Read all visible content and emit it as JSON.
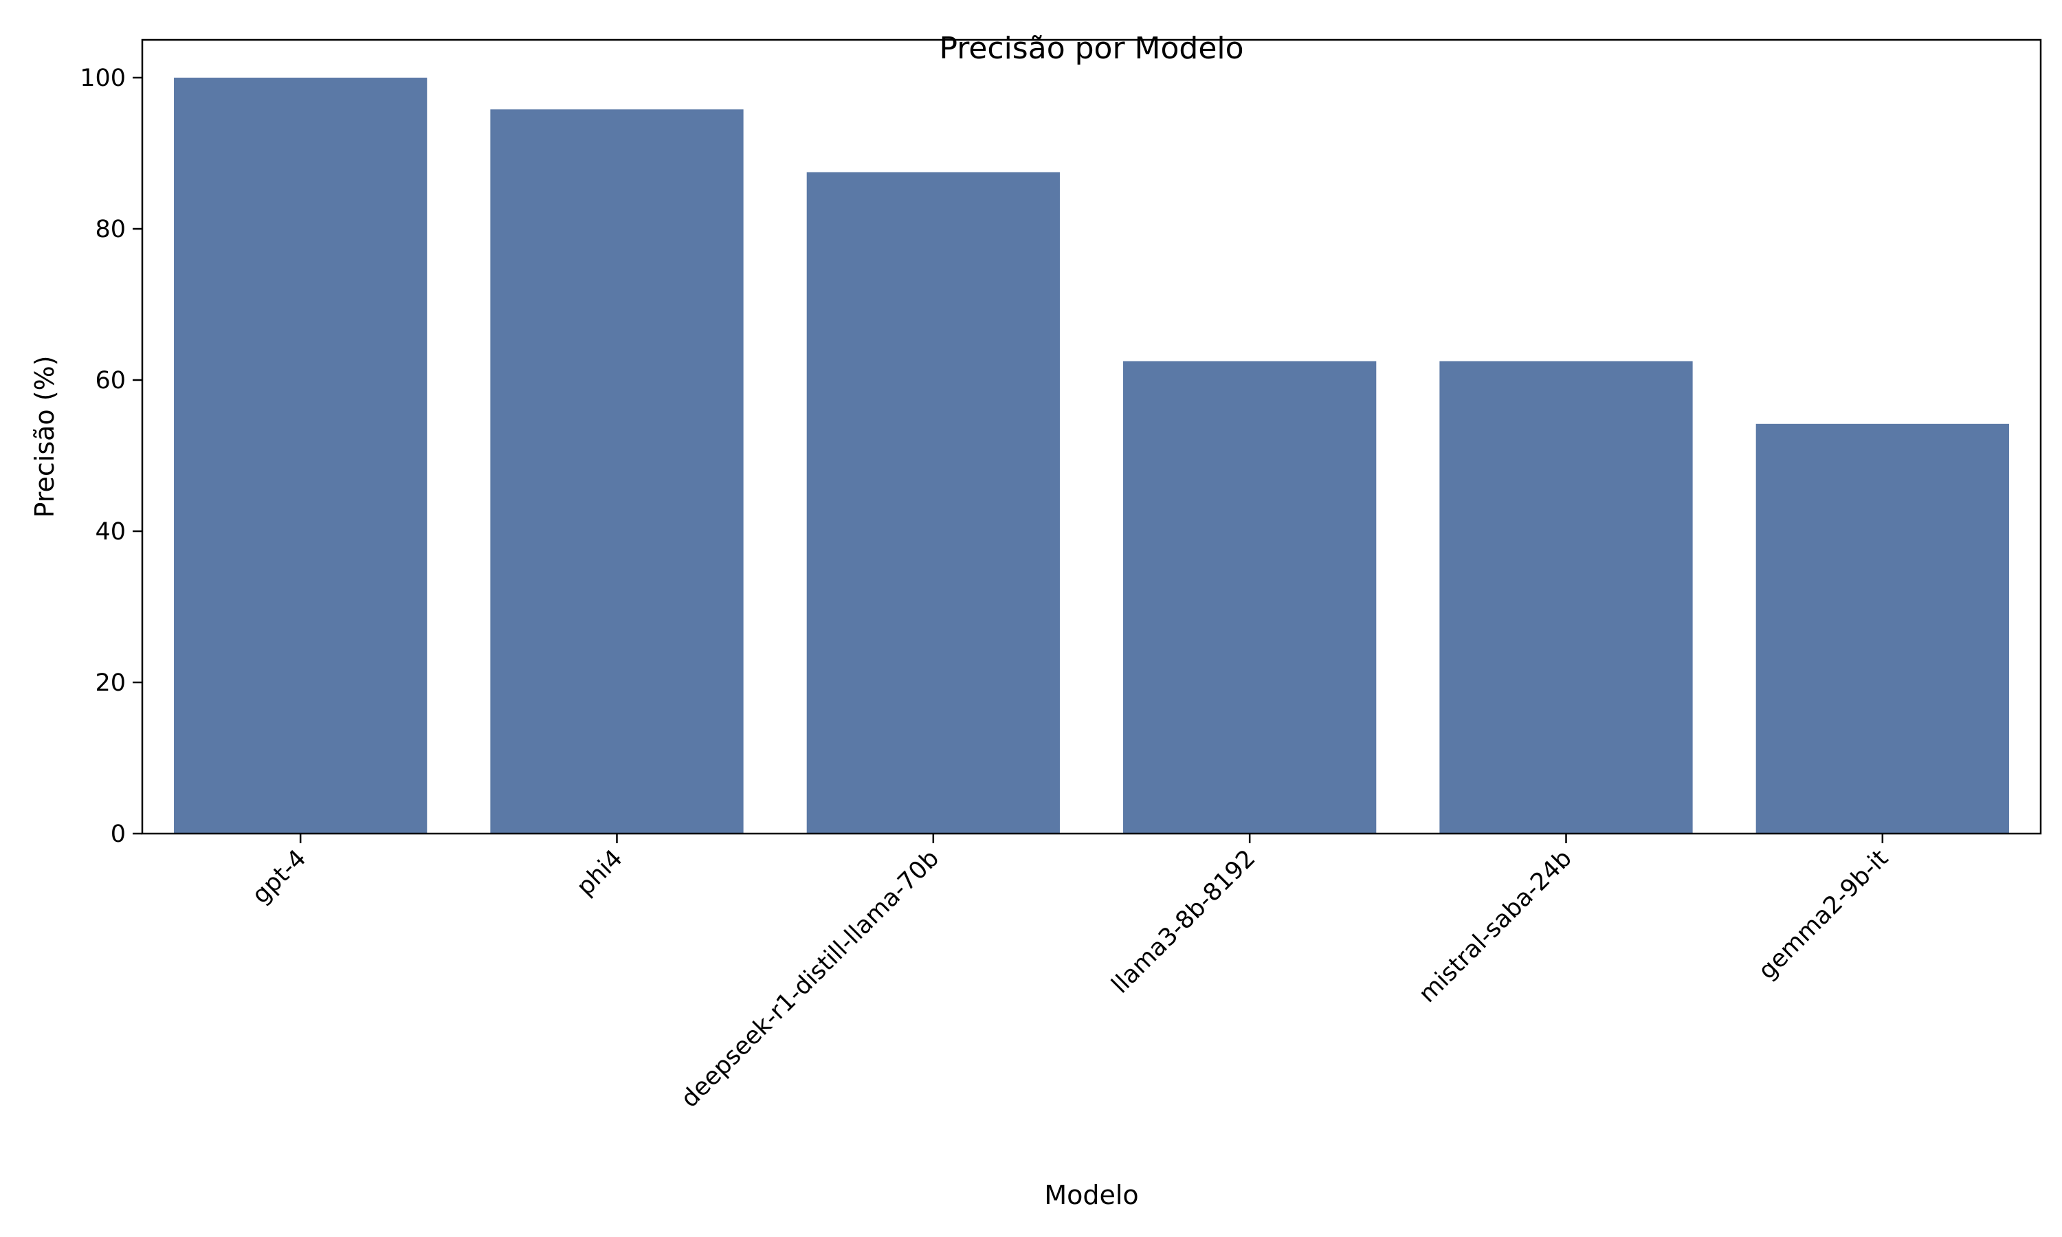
{
  "chart_data": {
    "type": "bar",
    "title": "Precisão por Modelo",
    "xlabel": "Modelo",
    "ylabel": "Precisão (%)",
    "categories": [
      "gpt-4",
      "phi4",
      "deepseek-r1-distill-llama-70b",
      "llama3-8b-8192",
      "mistral-saba-24b",
      "gemma2-9b-it"
    ],
    "values": [
      100,
      95.8,
      87.5,
      62.5,
      62.5,
      54.2
    ],
    "ylim": [
      0,
      105
    ],
    "yticks": [
      0,
      20,
      40,
      60,
      80,
      100
    ],
    "bar_color": "#5b79a6",
    "grid": false,
    "legend": "none"
  }
}
